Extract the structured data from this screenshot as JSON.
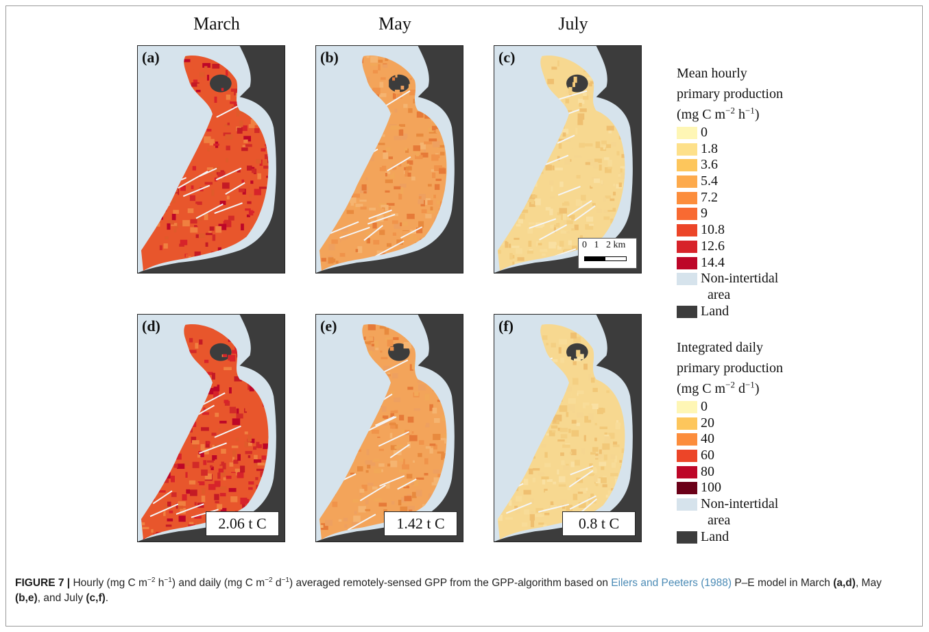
{
  "columns": [
    "March",
    "May",
    "July"
  ],
  "panels": [
    {
      "label": "(a)",
      "month": "March",
      "intensity": "high"
    },
    {
      "label": "(b)",
      "month": "May",
      "intensity": "medium"
    },
    {
      "label": "(c)",
      "month": "July",
      "intensity": "low"
    },
    {
      "label": "(d)",
      "month": "March",
      "intensity": "high",
      "total": "2.06 t C"
    },
    {
      "label": "(e)",
      "month": "May",
      "intensity": "medium",
      "total": "1.42 t C"
    },
    {
      "label": "(f)",
      "month": "July",
      "intensity": "low",
      "total": "0.8 t C"
    }
  ],
  "scalebar": {
    "labels": "0   1   2 km"
  },
  "legend_hourly": {
    "title_line1": "Mean hourly",
    "title_line2": "primary production",
    "title_unit_base": "(mg C m",
    "title_unit_sup1": "−2",
    "title_unit_mid": " h",
    "title_unit_sup2": "−1",
    "title_unit_end": ")",
    "items": [
      {
        "label": "0",
        "color": "#fef6b5"
      },
      {
        "label": "1.8",
        "color": "#fde08a"
      },
      {
        "label": "3.6",
        "color": "#fdc65c"
      },
      {
        "label": "5.4",
        "color": "#fdaa4c"
      },
      {
        "label": "7.2",
        "color": "#fc8d3c"
      },
      {
        "label": "9",
        "color": "#f86a32"
      },
      {
        "label": "10.8",
        "color": "#ec4528"
      },
      {
        "label": "12.6",
        "color": "#d7232a"
      },
      {
        "label": "14.4",
        "color": "#bd0628"
      },
      {
        "label": "Non-intertidal",
        "label2": "area",
        "color": "#d6e3ec"
      },
      {
        "label": "Land",
        "color": "#3c3c3c"
      }
    ]
  },
  "legend_daily": {
    "title_line1": "Integrated daily",
    "title_line2": "primary production",
    "title_unit_base": "(mg C m",
    "title_unit_sup1": "−2",
    "title_unit_mid": " d",
    "title_unit_sup2": "−1",
    "title_unit_end": ")",
    "items": [
      {
        "label": "0",
        "color": "#fef6b5"
      },
      {
        "label": "20",
        "color": "#fdc65c"
      },
      {
        "label": "40",
        "color": "#fc8d3c"
      },
      {
        "label": "60",
        "color": "#ec4528"
      },
      {
        "label": "80",
        "color": "#bd0628"
      },
      {
        "label": "100",
        "color": "#6b0018"
      },
      {
        "label": "Non-intertidal",
        "label2": "area",
        "color": "#d6e3ec"
      },
      {
        "label": "Land",
        "color": "#3c3c3c"
      }
    ]
  },
  "caption": {
    "figure": "FIGURE 7 |",
    "t1": " Hourly (mg C m",
    "s1": "−2",
    "t2": " h",
    "s2": "−1",
    "t3": ") and daily (mg C m",
    "s3": "−2",
    "t4": " d",
    "s4": "−1",
    "t5": ") averaged remotely-sensed GPP from the GPP-algorithm based on ",
    "ref": "Eilers and Peeters (1988)",
    "t6": " P–E model in March ",
    "b1": "(a,d)",
    "t7": ", May ",
    "b2": "(b,e)",
    "t8": ", and July ",
    "b3": "(c,f)",
    "t9": "."
  }
}
